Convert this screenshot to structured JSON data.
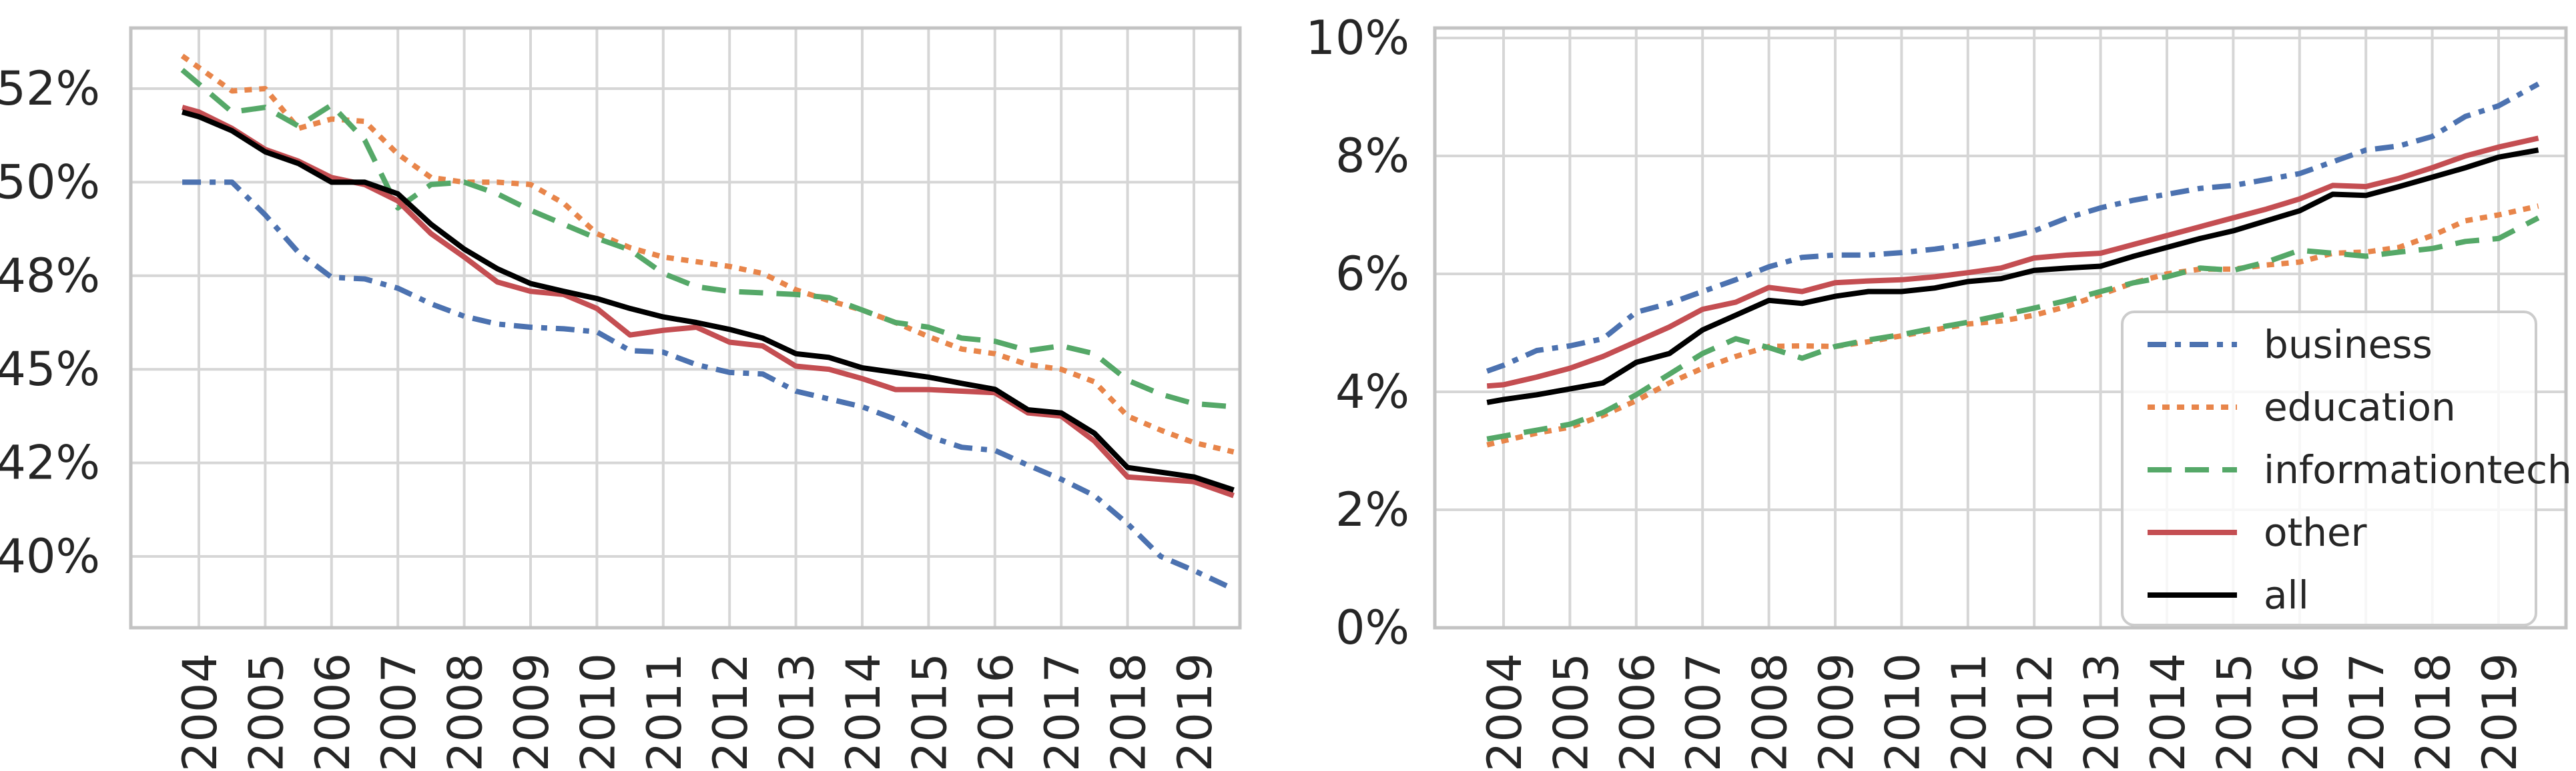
{
  "figure": {
    "description": "Two side-by-side line charts, quarterly time series 2004-2019, five series each",
    "background": "#ffffff"
  },
  "colors": {
    "business": "#4C72B0",
    "education": "#E8854A",
    "informationtech": "#55A868",
    "other": "#C44E52",
    "all": "#000000",
    "grid": "#d6d6d6",
    "spine": "#c3c3c3",
    "tick_text": "#262626",
    "legend_border": "#cccccc",
    "legend_fill": "rgba(255,255,255,0.8)"
  },
  "legend": {
    "position": "lower right of right chart",
    "entries": [
      {
        "label": "business",
        "color": "business",
        "dash": "28 13 9 13"
      },
      {
        "label": "education",
        "color": "education",
        "dash": "11 11"
      },
      {
        "label": "informationtech",
        "color": "informationtech",
        "dash": "36 20"
      },
      {
        "label": "other",
        "color": "other",
        "dash": ""
      },
      {
        "label": "all",
        "color": "all",
        "dash": ""
      }
    ]
  },
  "chart_data": [
    {
      "type": "line",
      "title": "",
      "xlabel": "",
      "ylabel": "",
      "grid": true,
      "y_scale_note": "custom ticks, evenly spaced on axis",
      "ytick_values": [
        52,
        50,
        48,
        45,
        42,
        40
      ],
      "ytick_labels": [
        "52%",
        "50%",
        "48%",
        "45%",
        "42%",
        "40%"
      ],
      "x_years": [
        2004,
        2005,
        2006,
        2007,
        2008,
        2009,
        2010,
        2011,
        2012,
        2013,
        2014,
        2015,
        2016,
        2017,
        2018,
        2019
      ],
      "xtick_labels": [
        "2004",
        "2005",
        "2006",
        "2007",
        "2008",
        "2009",
        "2010",
        "2011",
        "2012",
        "2013",
        "2014",
        "2015",
        "2016",
        "2017",
        "2018",
        "2019"
      ],
      "x": [
        2003.75,
        2004,
        2004.5,
        2005,
        2005.5,
        2006,
        2006.5,
        2007,
        2007.5,
        2008,
        2008.5,
        2009,
        2009.5,
        2010,
        2010.5,
        2011,
        2011.5,
        2012,
        2012.5,
        2013,
        2013.5,
        2014,
        2014.5,
        2015,
        2015.5,
        2016,
        2016.5,
        2017,
        2017.5,
        2018,
        2018.5,
        2019,
        2019.6
      ],
      "series": [
        {
          "name": "business",
          "color": "business",
          "dash": "28 13 9 13",
          "values": [
            50.0,
            50.0,
            50.0,
            49.3,
            48.5,
            47.95,
            47.9,
            47.6,
            47.1,
            46.7,
            46.45,
            46.35,
            46.3,
            46.2,
            45.6,
            45.55,
            45.15,
            44.9,
            44.85,
            44.3,
            44.05,
            43.8,
            43.4,
            42.85,
            42.5,
            42.4,
            41.95,
            41.65,
            41.3,
            40.7,
            40.0,
            39.7,
            39.3
          ]
        },
        {
          "name": "education",
          "color": "education",
          "dash": "11 11",
          "values": [
            52.7,
            52.45,
            51.95,
            52.0,
            51.15,
            51.35,
            51.3,
            50.6,
            50.1,
            50.0,
            50.0,
            49.95,
            49.55,
            48.9,
            48.6,
            48.4,
            48.3,
            48.2,
            48.05,
            47.55,
            47.2,
            46.9,
            46.5,
            46.05,
            45.65,
            45.5,
            45.15,
            45.0,
            44.6,
            43.5,
            43.05,
            42.65,
            42.35
          ]
        },
        {
          "name": "informationtech",
          "color": "informationtech",
          "dash": "36 20",
          "values": [
            52.4,
            52.1,
            51.5,
            51.6,
            51.2,
            51.65,
            50.9,
            49.45,
            49.95,
            50.0,
            49.75,
            49.4,
            49.1,
            48.8,
            48.55,
            48.05,
            47.65,
            47.5,
            47.45,
            47.4,
            47.3,
            46.9,
            46.5,
            46.35,
            46.0,
            45.9,
            45.6,
            45.75,
            45.5,
            44.65,
            44.2,
            43.9,
            43.8
          ]
        },
        {
          "name": "other",
          "color": "other",
          "dash": "",
          "values": [
            51.6,
            51.5,
            51.15,
            50.7,
            50.45,
            50.1,
            49.95,
            49.6,
            48.9,
            48.4,
            47.8,
            47.5,
            47.4,
            46.95,
            46.1,
            46.25,
            46.35,
            45.87,
            45.75,
            45.1,
            45.0,
            44.7,
            44.35,
            44.35,
            44.3,
            44.25,
            43.6,
            43.5,
            42.7,
            41.7,
            41.65,
            41.6,
            41.3
          ]
        },
        {
          "name": "all",
          "color": "all",
          "dash": "",
          "values": [
            51.5,
            51.4,
            51.1,
            50.65,
            50.4,
            50.0,
            50.0,
            49.75,
            49.1,
            48.57,
            48.15,
            47.75,
            47.5,
            47.27,
            46.95,
            46.68,
            46.5,
            46.28,
            46.0,
            45.5,
            45.38,
            45.05,
            44.9,
            44.75,
            44.55,
            44.36,
            43.7,
            43.6,
            42.95,
            41.9,
            41.8,
            41.7,
            41.42
          ]
        }
      ]
    },
    {
      "type": "line",
      "title": "",
      "xlabel": "",
      "ylabel": "",
      "grid": true,
      "y_scale_note": "linear 0-10%",
      "ytick_values": [
        10,
        8,
        6,
        4,
        2,
        0
      ],
      "ytick_labels": [
        "10%",
        "8%",
        "6%",
        "4%",
        "2%",
        "0%"
      ],
      "x_years": [
        2004,
        2005,
        2006,
        2007,
        2008,
        2009,
        2010,
        2011,
        2012,
        2013,
        2014,
        2015,
        2016,
        2017,
        2018,
        2019
      ],
      "xtick_labels": [
        "2004",
        "2005",
        "2006",
        "2007",
        "2008",
        "2009",
        "2010",
        "2011",
        "2012",
        "2013",
        "2014",
        "2015",
        "2016",
        "2017",
        "2018",
        "2019"
      ],
      "x": [
        2003.75,
        2004,
        2004.5,
        2005,
        2005.5,
        2006,
        2006.5,
        2007,
        2007.5,
        2008,
        2008.5,
        2009,
        2009.5,
        2010,
        2010.5,
        2011,
        2011.5,
        2012,
        2012.5,
        2013,
        2013.5,
        2014,
        2014.5,
        2015,
        2015.5,
        2016,
        2016.5,
        2017,
        2017.5,
        2018,
        2018.5,
        2019,
        2019.6
      ],
      "series": [
        {
          "name": "business",
          "color": "business",
          "dash": "28 13 9 13",
          "values": [
            4.35,
            4.45,
            4.7,
            4.78,
            4.9,
            5.35,
            5.5,
            5.7,
            5.9,
            6.12,
            6.28,
            6.32,
            6.32,
            6.36,
            6.42,
            6.5,
            6.6,
            6.73,
            6.95,
            7.12,
            7.25,
            7.35,
            7.45,
            7.5,
            7.6,
            7.7,
            7.9,
            8.1,
            8.17,
            8.33,
            8.67,
            8.85,
            9.22
          ]
        },
        {
          "name": "education",
          "color": "education",
          "dash": "11 11",
          "values": [
            3.1,
            3.17,
            3.3,
            3.4,
            3.6,
            3.85,
            4.15,
            4.4,
            4.6,
            4.77,
            4.78,
            4.77,
            4.85,
            4.95,
            5.05,
            5.15,
            5.2,
            5.3,
            5.45,
            5.65,
            5.85,
            6.0,
            6.08,
            6.08,
            6.15,
            6.2,
            6.35,
            6.37,
            6.45,
            6.65,
            6.9,
            7.0,
            7.15
          ]
        },
        {
          "name": "informationtech",
          "color": "informationtech",
          "dash": "36 20",
          "values": [
            3.2,
            3.25,
            3.35,
            3.45,
            3.65,
            3.95,
            4.3,
            4.65,
            4.9,
            4.75,
            4.57,
            4.77,
            4.88,
            4.97,
            5.08,
            5.18,
            5.3,
            5.42,
            5.55,
            5.7,
            5.85,
            5.95,
            6.1,
            6.06,
            6.2,
            6.4,
            6.35,
            6.3,
            6.37,
            6.43,
            6.55,
            6.6,
            6.95
          ]
        },
        {
          "name": "other",
          "color": "other",
          "dash": "",
          "values": [
            4.1,
            4.12,
            4.25,
            4.4,
            4.6,
            4.85,
            5.1,
            5.4,
            5.52,
            5.77,
            5.7,
            5.85,
            5.88,
            5.9,
            5.95,
            6.02,
            6.1,
            6.27,
            6.32,
            6.35,
            6.5,
            6.65,
            6.8,
            6.95,
            7.1,
            7.27,
            7.5,
            7.48,
            7.62,
            7.8,
            8.0,
            8.15,
            8.3
          ]
        },
        {
          "name": "all",
          "color": "all",
          "dash": "",
          "values": [
            3.82,
            3.87,
            3.95,
            4.05,
            4.15,
            4.5,
            4.65,
            5.05,
            5.3,
            5.55,
            5.5,
            5.62,
            5.7,
            5.7,
            5.76,
            5.87,
            5.92,
            6.06,
            6.1,
            6.13,
            6.3,
            6.45,
            6.6,
            6.73,
            6.9,
            7.07,
            7.35,
            7.33,
            7.48,
            7.64,
            7.8,
            7.98,
            8.1
          ]
        }
      ]
    }
  ]
}
